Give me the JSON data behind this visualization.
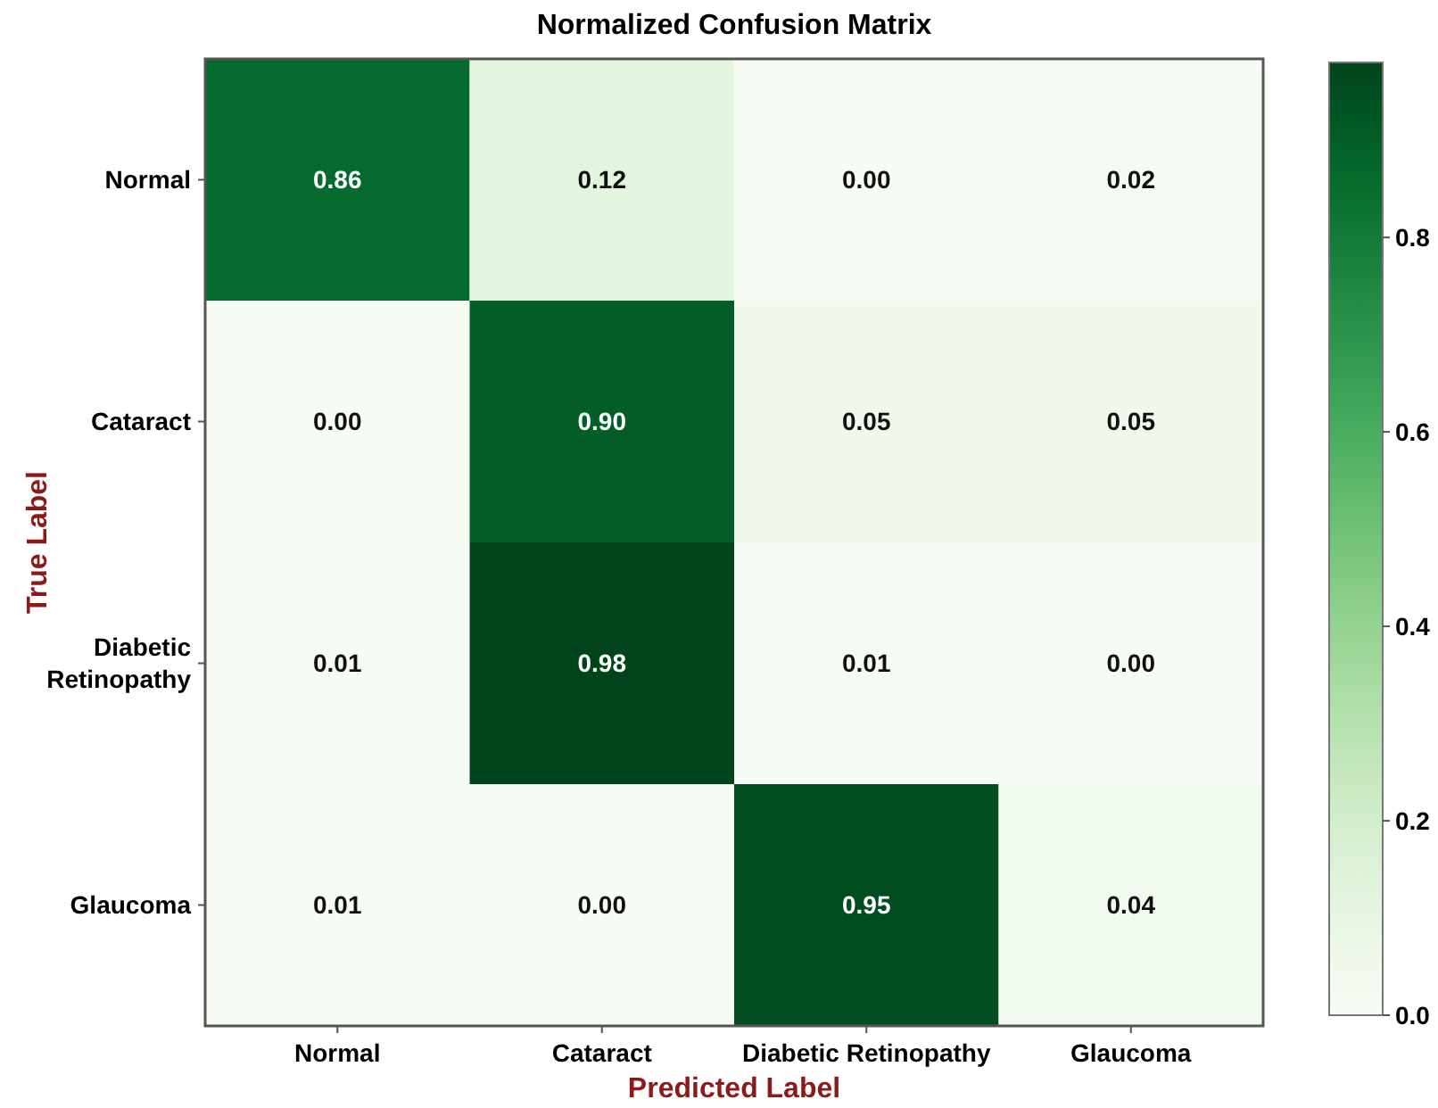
{
  "chart_data": {
    "type": "heatmap",
    "title": "Normalized Confusion Matrix",
    "xlabel": "Predicted Label",
    "ylabel": "True Label",
    "categories": [
      "Normal",
      "Cataract",
      "Diabetic Retinopathy",
      "Glaucoma"
    ],
    "y_categories": [
      "Normal",
      "Cataract",
      "Diabetic Retinopathy",
      "Glaucoma"
    ],
    "cells": [
      [
        0.86,
        0.12,
        0.0,
        0.02
      ],
      [
        0.0,
        0.9,
        0.05,
        0.05
      ],
      [
        0.01,
        0.98,
        0.01,
        0.0
      ],
      [
        0.01,
        0.0,
        0.95,
        0.04
      ]
    ],
    "cell_labels": [
      [
        "0.86",
        "0.12",
        "0.00",
        "0.02"
      ],
      [
        "0.00",
        "0.90",
        "0.05",
        "0.05"
      ],
      [
        "0.01",
        "0.98",
        "0.01",
        "0.00"
      ],
      [
        "0.01",
        "0.00",
        "0.95",
        "0.04"
      ]
    ],
    "clim": [
      0,
      0.98
    ],
    "cticks": [
      {
        "value": 0,
        "label": "0.0"
      },
      0.2,
      0.4,
      0.6,
      0.8
    ]
  }
}
